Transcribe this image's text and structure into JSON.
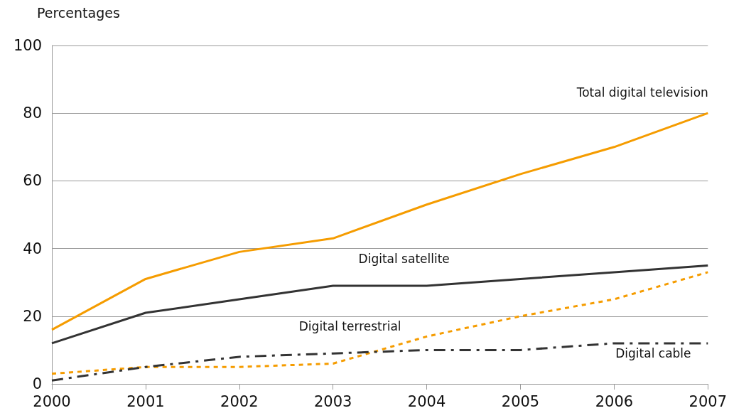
{
  "chart_data": {
    "type": "line",
    "ylabel": "Percentages",
    "x": [
      2000,
      2001,
      2002,
      2003,
      2004,
      2005,
      2006,
      2007
    ],
    "xlim": [
      2000,
      2007
    ],
    "xticks": [
      2000,
      2001,
      2002,
      2003,
      2004,
      2005,
      2006,
      2007
    ],
    "ylim": [
      0,
      100
    ],
    "yticks": [
      0,
      20,
      40,
      60,
      80,
      100
    ],
    "grid": "y",
    "marker": "none",
    "series": [
      {
        "name": "Total digital television",
        "color": "#f59c00",
        "line_style": "solid",
        "values": [
          16,
          31,
          39,
          43,
          53,
          62,
          70,
          80
        ]
      },
      {
        "name": "Digital satellite",
        "color": "#333333",
        "line_style": "solid",
        "values": [
          12,
          21,
          25,
          29,
          29,
          31,
          33,
          35
        ]
      },
      {
        "name": "Digital terrestrial",
        "color": "#f59c00",
        "line_style": "dotted",
        "values": [
          3,
          5,
          5,
          6,
          14,
          20,
          25,
          33
        ]
      },
      {
        "name": "Digital cable",
        "color": "#333333",
        "line_style": "dashdot",
        "values": [
          1,
          5,
          8,
          9,
          10,
          10,
          12,
          12
        ]
      }
    ]
  }
}
